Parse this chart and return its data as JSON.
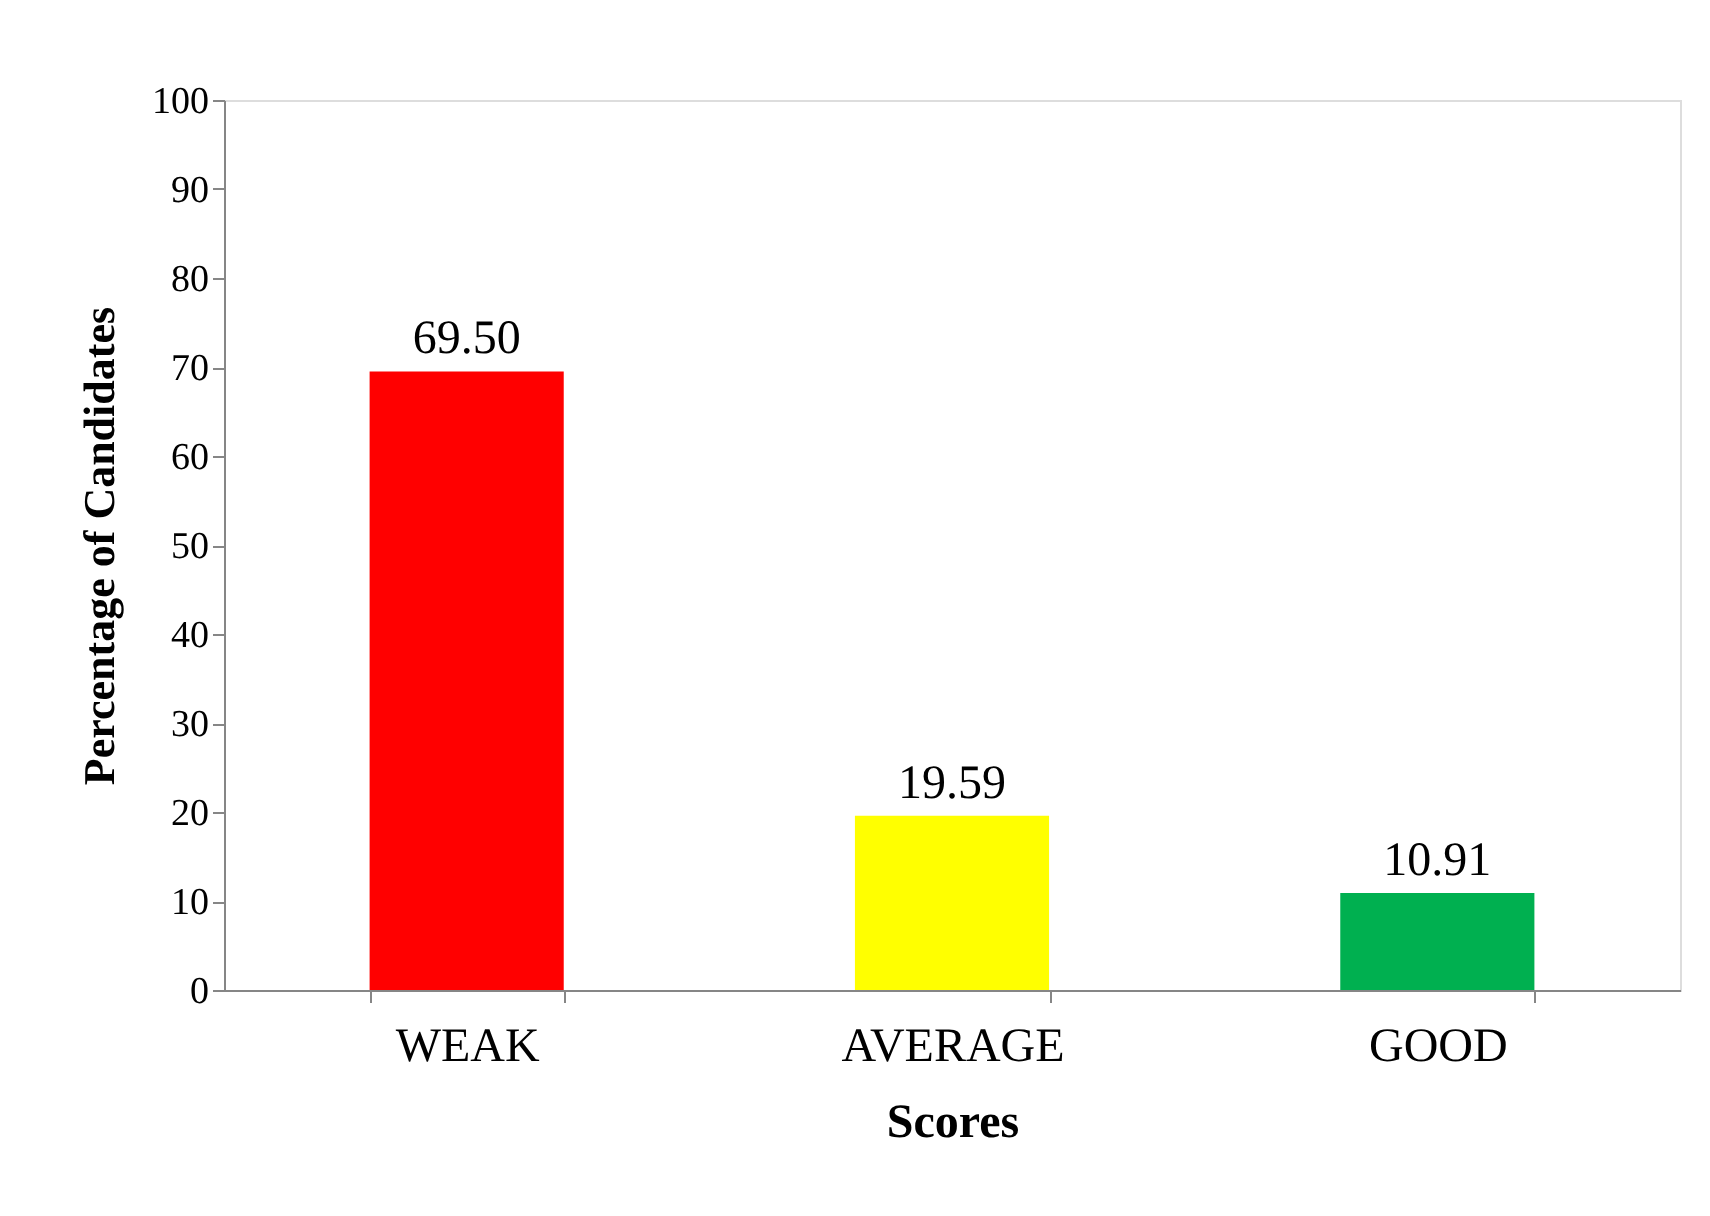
{
  "chart_data": {
    "type": "bar",
    "xlabel": "Scores",
    "ylabel": "Percentage of Candidates",
    "categories": [
      "WEAK",
      "AVERAGE",
      "GOOD"
    ],
    "values": [
      69.5,
      19.59,
      10.91
    ],
    "colors": [
      "#ff0000",
      "#ffff00",
      "#00b050"
    ],
    "value_labels": [
      "69.50",
      "19.59",
      "10.91"
    ],
    "ylim": [
      0,
      100
    ],
    "yticks": [
      0,
      10,
      20,
      30,
      40,
      50,
      60,
      70,
      80,
      90,
      100
    ],
    "grid": false,
    "legend": false
  }
}
